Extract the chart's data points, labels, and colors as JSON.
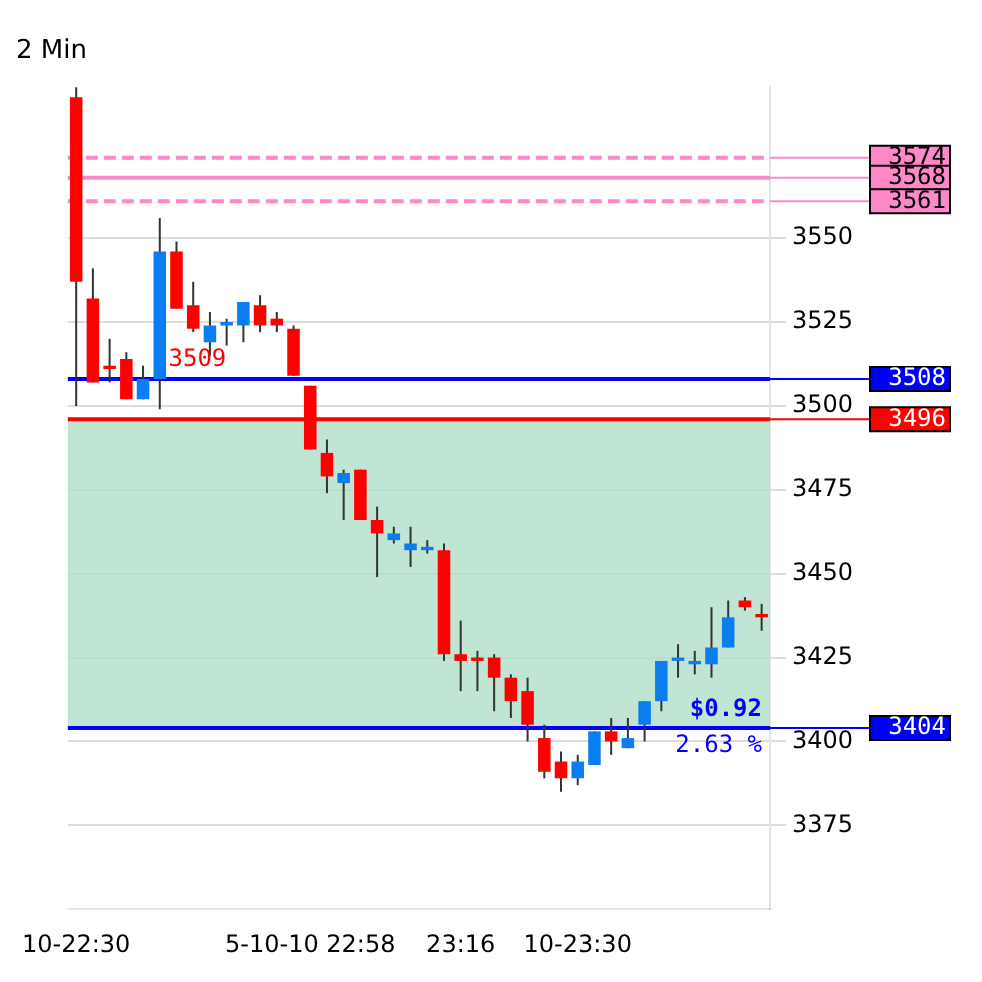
{
  "chart_data": {
    "type": "candlestick",
    "title": "2 Min",
    "categories": [
      "10-22:30",
      null,
      null,
      null,
      null,
      null,
      null,
      null,
      null,
      null,
      null,
      null,
      null,
      null,
      "5-10-10 22:58",
      null,
      null,
      null,
      null,
      null,
      null,
      null,
      null,
      "23:16",
      null,
      null,
      null,
      null,
      null,
      null,
      "10-23:30",
      null,
      null,
      null,
      null,
      null,
      null,
      null,
      null,
      null,
      null,
      null
    ],
    "ohlc": [
      [
        3592,
        3595,
        3500,
        3537
      ],
      [
        3532,
        3541,
        3507,
        3507
      ],
      [
        3512,
        3520,
        3507,
        3511
      ],
      [
        3514,
        3516,
        3502,
        3502
      ],
      [
        3502,
        3512,
        3502,
        3508
      ],
      [
        3508,
        3556,
        3499,
        3546
      ],
      [
        3546,
        3549,
        3529,
        3529
      ],
      [
        3530,
        3537,
        3522,
        3523
      ],
      [
        3519,
        3528,
        3515,
        3524
      ],
      [
        3524,
        3526,
        3518,
        3525
      ],
      [
        3524,
        3531,
        3519,
        3531
      ],
      [
        3530,
        3533,
        3522,
        3524
      ],
      [
        3526,
        3528,
        3522,
        3524
      ],
      [
        3523,
        3524,
        3509,
        3509
      ],
      [
        3506,
        3506,
        3487,
        3487
      ],
      [
        3486,
        3490,
        3474,
        3479
      ],
      [
        3477,
        3481,
        3466,
        3480
      ],
      [
        3481,
        3481,
        3466,
        3466
      ],
      [
        3466,
        3470,
        3449,
        3462
      ],
      [
        3460,
        3464,
        3459,
        3462
      ],
      [
        3457,
        3464,
        3452,
        3459
      ],
      [
        3457,
        3460,
        3456,
        3458
      ],
      [
        3457,
        3459,
        3424,
        3426
      ],
      [
        3426,
        3436,
        3415,
        3424
      ],
      [
        3425,
        3427,
        3415,
        3424
      ],
      [
        3425,
        3426,
        3409,
        3419
      ],
      [
        3419,
        3420,
        3407,
        3412
      ],
      [
        3415,
        3419,
        3400,
        3405
      ],
      [
        3401,
        3405,
        3389,
        3391
      ],
      [
        3394,
        3397,
        3385,
        3389
      ],
      [
        3389,
        3396,
        3387,
        3394
      ],
      [
        3393,
        3403,
        3393,
        3403
      ],
      [
        3403,
        3407,
        3396,
        3400
      ],
      [
        3398,
        3407,
        3398,
        3401
      ],
      [
        3405,
        3412,
        3400,
        3412
      ],
      [
        3412,
        3424,
        3409,
        3424
      ],
      [
        3424,
        3429,
        3419,
        3425
      ],
      [
        3423,
        3427,
        3420,
        3424
      ],
      [
        3423,
        3440,
        3419,
        3428
      ],
      [
        3428,
        3442,
        3428,
        3437
      ],
      [
        3442,
        3443,
        3439,
        3440
      ],
      [
        3438,
        3441,
        3433,
        3437
      ]
    ],
    "colors": [
      "#ff0000",
      "#ff0000",
      "#ff0000",
      "#ff0000",
      "#0a7ef0",
      "#0a7ef0",
      "#ff0000",
      "#ff0000",
      "#0a7ef0",
      "#0a7ef0",
      "#0a7ef0",
      "#ff0000",
      "#ff0000",
      "#ff0000",
      "#ff0000",
      "#ff0000",
      "#0a7ef0",
      "#ff0000",
      "#ff0000",
      "#0a7ef0",
      "#0a7ef0",
      "#0a7ef0",
      "#ff0000",
      "#ff0000",
      "#ff0000",
      "#ff0000",
      "#ff0000",
      "#ff0000",
      "#ff0000",
      "#ff0000",
      "#0a7ef0",
      "#0a7ef0",
      "#ff0000",
      "#0a7ef0",
      "#0a7ef0",
      "#0a7ef0",
      "#0a7ef0",
      "#0a7ef0",
      "#0a7ef0",
      "#0a7ef0",
      "#ff0000",
      "#ff0000"
    ],
    "ylim": [
      3350,
      3595
    ],
    "yticks": [
      3375,
      3400,
      3425,
      3450,
      3475,
      3500,
      3525,
      3550
    ],
    "grid": "y",
    "ref_lines": [
      {
        "axis": "y",
        "value": 3574,
        "label": "3574",
        "color": "#ff88c8",
        "line_style": "dashed"
      },
      {
        "axis": "y",
        "value": 3568,
        "label": "3568",
        "color": "#ff88c8",
        "line_style": "solid"
      },
      {
        "axis": "y",
        "value": 3561,
        "label": "3561",
        "color": "#ff88c8",
        "line_style": "dashed"
      },
      {
        "axis": "y",
        "value": 3508,
        "label": "3508",
        "color": "#0000ff",
        "line_style": "solid"
      },
      {
        "axis": "y",
        "value": 3496,
        "label": "3496",
        "color": "#ff0000",
        "line_style": "solid"
      },
      {
        "axis": "y",
        "value": 3404,
        "label": "3404",
        "color": "#0000ff",
        "line_style": "solid"
      }
    ],
    "bands": [
      {
        "axis": "y",
        "from": 3404,
        "to": 3496,
        "color": "#b0dfc7"
      }
    ],
    "annotations": [
      {
        "text": "3509",
        "y": 3509
      },
      {
        "text": "$0.92",
        "y": 3404
      },
      {
        "text": "2.63 %",
        "y": 3404
      }
    ]
  }
}
